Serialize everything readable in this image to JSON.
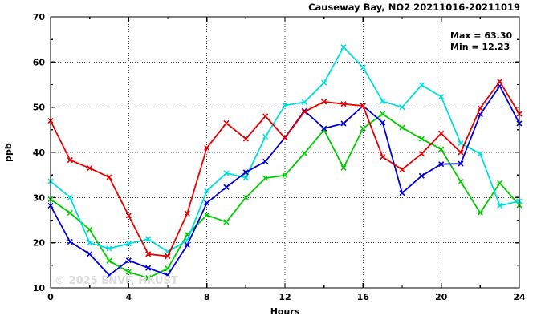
{
  "chart_data": {
    "type": "line",
    "title": "Causeway Bay, NO2 20211016-20211019",
    "xlabel": "Hours",
    "ylabel": "ppb",
    "xlim": [
      0,
      24
    ],
    "ylim": [
      10,
      70
    ],
    "xticks": [
      0,
      4,
      8,
      12,
      16,
      20,
      24
    ],
    "yticks": [
      10,
      20,
      30,
      40,
      50,
      60,
      70
    ],
    "x_minor_step": 2,
    "y_minor_step": 5,
    "grid": "dotted-major",
    "legend": "none",
    "annotations": {
      "max_label": "Max = 63.30",
      "min_label": "Min = 12.23"
    },
    "watermark": "© 2025 ENVF, HKUST",
    "x": [
      0,
      1,
      2,
      3,
      4,
      5,
      6,
      7,
      8,
      9,
      10,
      11,
      12,
      13,
      14,
      15,
      16,
      17,
      18,
      19,
      20,
      21,
      22,
      23,
      24
    ],
    "series": [
      {
        "name": "green-line",
        "color": "#00cc00",
        "values": [
          29.6,
          26.6,
          22.9,
          16.0,
          13.5,
          12.2,
          14.3,
          21.8,
          26.1,
          24.6,
          30.0,
          34.3,
          34.9,
          39.8,
          45.0,
          36.6,
          45.3,
          48.5,
          45.5,
          43.0,
          40.7,
          33.5,
          26.6,
          33.2,
          28.3
        ]
      },
      {
        "name": "cyan-line",
        "color": "#00dede",
        "values": [
          33.6,
          30.0,
          20.0,
          18.7,
          19.8,
          20.8,
          18.0,
          20.5,
          31.5,
          35.4,
          34.4,
          43.5,
          50.4,
          51.1,
          55.4,
          63.3,
          58.8,
          51.3,
          50.0,
          54.9,
          52.3,
          42.0,
          39.7,
          28.2,
          29.2
        ]
      },
      {
        "name": "blue-line",
        "color": "#0000dd",
        "values": [
          28.2,
          20.2,
          17.5,
          12.8,
          16.1,
          14.4,
          12.8,
          19.5,
          28.8,
          32.3,
          35.6,
          38.0,
          43.3,
          49.2,
          45.3,
          46.4,
          50.3,
          46.6,
          31.0,
          34.8,
          37.4,
          37.5,
          48.4,
          54.7,
          46.4
        ]
      },
      {
        "name": "red-line",
        "color": "#e60000",
        "values": [
          47.0,
          38.3,
          36.5,
          34.5,
          26.0,
          17.5,
          17.0,
          26.5,
          41.0,
          46.5,
          43.0,
          48.0,
          43.2,
          49.0,
          51.2,
          50.7,
          50.3,
          39.0,
          36.2,
          39.7,
          44.2,
          40.0,
          49.8,
          55.7,
          48.5
        ]
      }
    ]
  }
}
